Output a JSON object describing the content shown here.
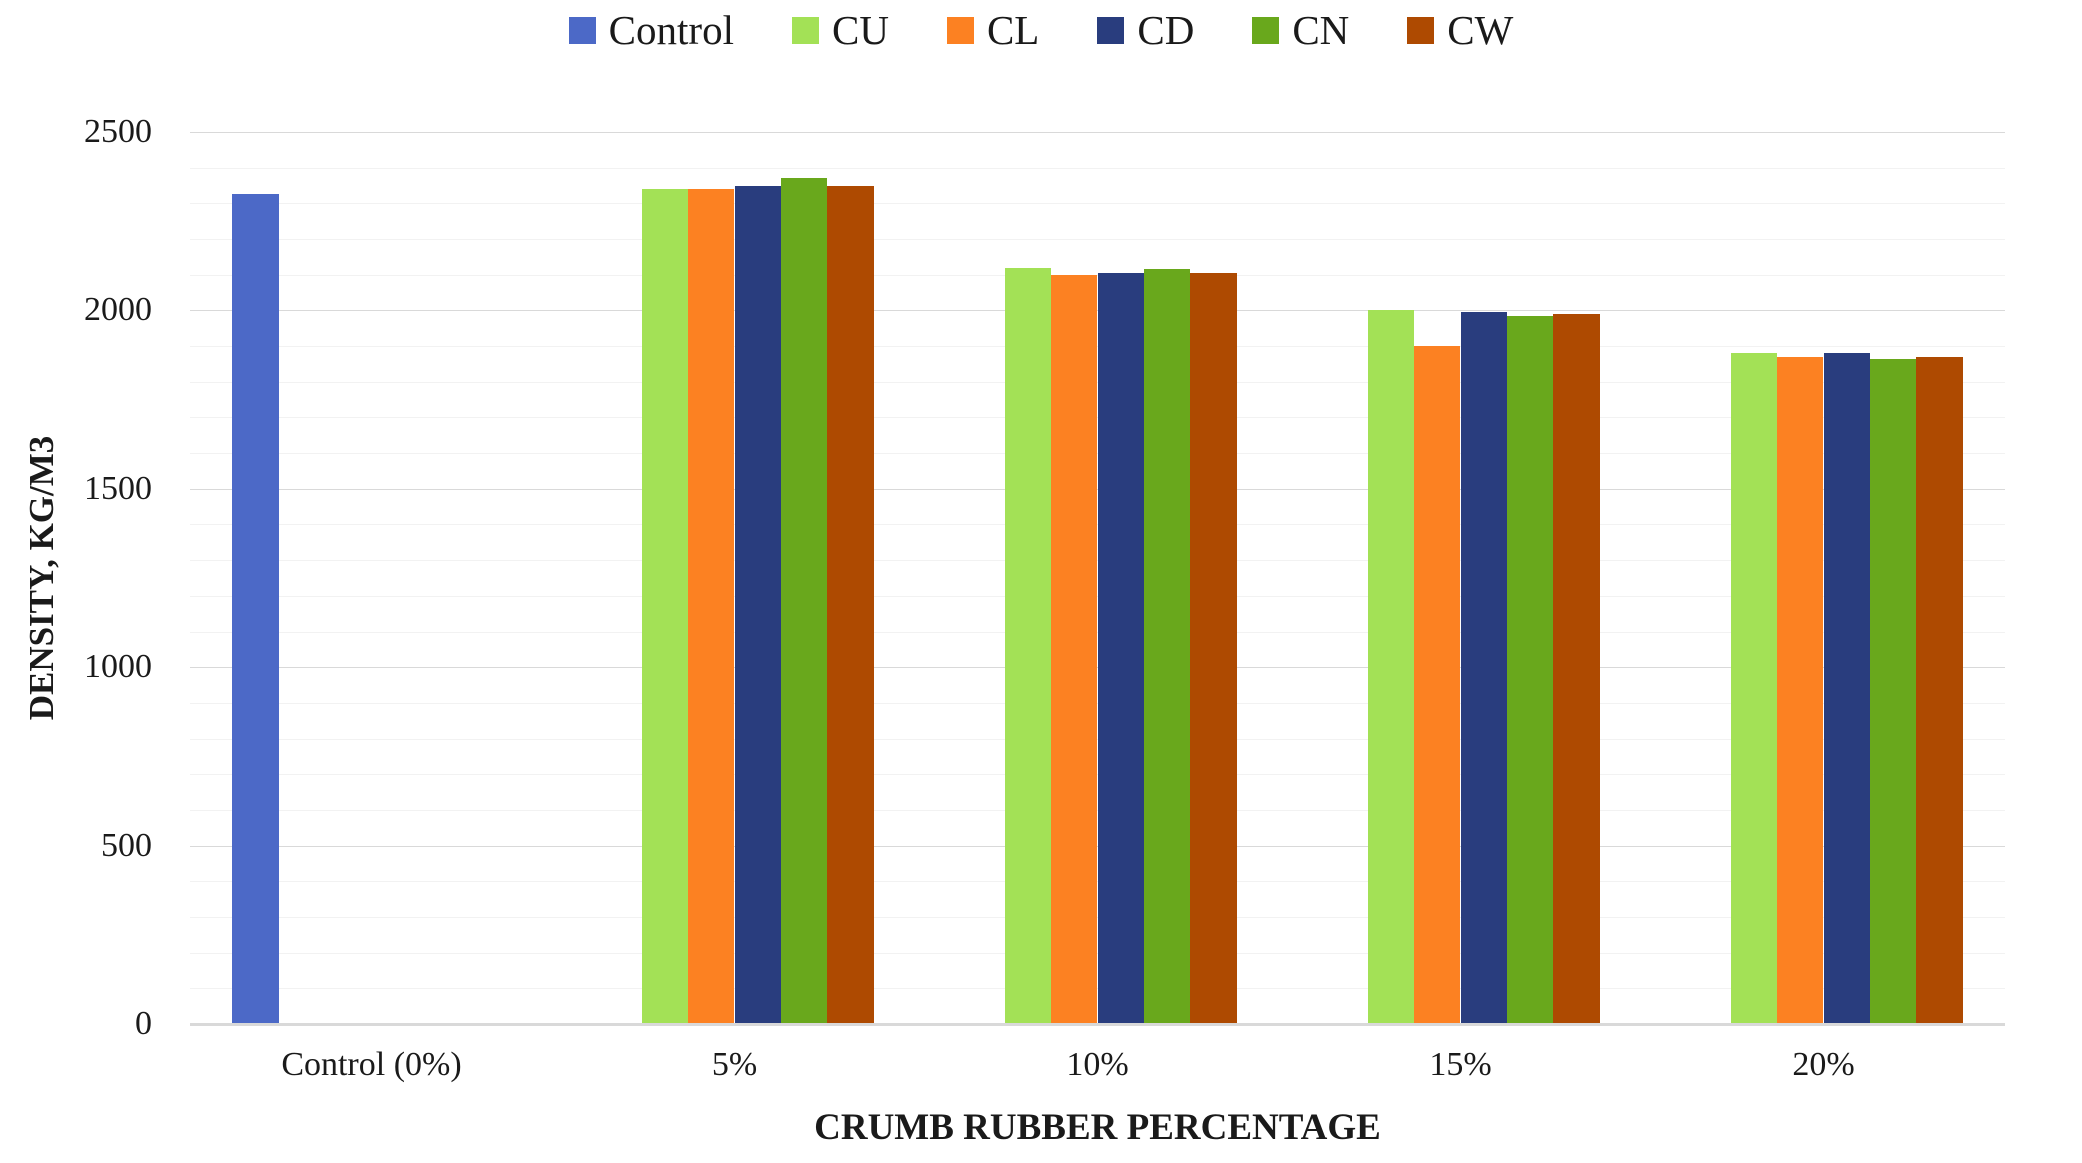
{
  "chart_data": {
    "type": "bar",
    "title": "",
    "xlabel": "CRUMB RUBBER PERCENTAGE",
    "ylabel": "DENSITY, KG/M3",
    "categories": [
      "Control (0%)",
      "5%",
      "10%",
      "15%",
      "20%"
    ],
    "series": [
      {
        "name": "Control",
        "color": "#4C69C7",
        "values": [
          2325,
          null,
          null,
          null,
          null
        ]
      },
      {
        "name": "CU",
        "color": "#A3E156",
        "values": [
          null,
          2340,
          2120,
          2000,
          1880
        ]
      },
      {
        "name": "CL",
        "color": "#FC8122",
        "values": [
          null,
          2340,
          2100,
          1900,
          1870
        ]
      },
      {
        "name": "CD",
        "color": "#293D7E",
        "values": [
          null,
          2350,
          2105,
          1995,
          1880
        ]
      },
      {
        "name": "CN",
        "color": "#69A81C",
        "values": [
          null,
          2370,
          2115,
          1985,
          1865
        ]
      },
      {
        "name": "CW",
        "color": "#AE4A01",
        "values": [
          null,
          2350,
          2105,
          1990,
          1870
        ]
      }
    ],
    "ylim": [
      0,
      2500
    ],
    "ytick_step": 500,
    "minor_grid_step": 100,
    "yticks": [
      "0",
      "500",
      "1000",
      "1500",
      "2000",
      "2500"
    ],
    "legend_position": "top",
    "grid": true
  },
  "colors": {
    "background": "#FFFFFF",
    "text": "#1A1A1A",
    "major_gridline": "#D9D9D9",
    "minor_gridline": "#F2F2F2",
    "axis_line": "#D9D9D9"
  }
}
